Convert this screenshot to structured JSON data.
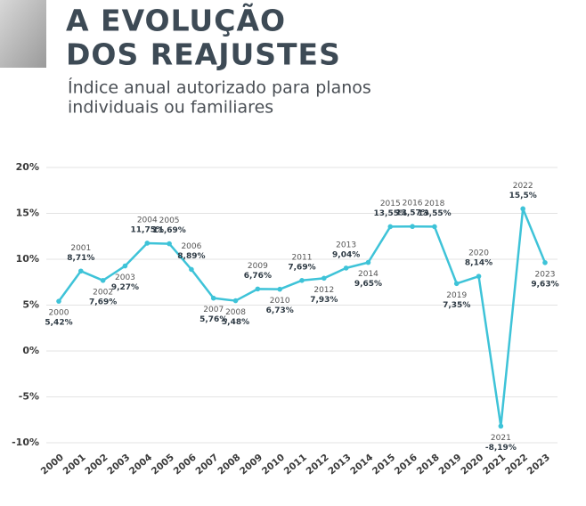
{
  "chart_data": {
    "type": "line",
    "title": [
      "A EVOLUÇÃO",
      "DOS REAJUSTES"
    ],
    "subtitle": [
      "Índice anual autorizado para planos",
      "individuais ou familiares"
    ],
    "categories": [
      "2000",
      "2001",
      "2002",
      "2003",
      "2004",
      "2005",
      "2006",
      "2007",
      "2008",
      "2009",
      "2010",
      "2011",
      "2012",
      "2013",
      "2014",
      "2015",
      "2016",
      "2018",
      "2019",
      "2020",
      "2021",
      "2022",
      "2023"
    ],
    "series": [
      {
        "name": "Reajuste",
        "color": "#3ec3d8",
        "values": [
          5.42,
          8.71,
          7.69,
          9.27,
          11.75,
          11.69,
          8.89,
          5.76,
          5.48,
          6.76,
          6.73,
          7.69,
          7.93,
          9.04,
          9.65,
          13.55,
          13.57,
          13.55,
          7.35,
          8.14,
          -8.19,
          15.5,
          9.63
        ],
        "value_labels": [
          "5,42%",
          "8,71%",
          "7,69%",
          "9,27%",
          "11,75%",
          "11,69%",
          "8,89%",
          "5,76%",
          "5,48%",
          "6,76%",
          "6,73%",
          "7,69%",
          "7,93%",
          "9,04%",
          "9,65%",
          "13,55%",
          "13,57%",
          "13,55%",
          "7,35%",
          "8,14%",
          "-8,19%",
          "15,5%",
          "9,63%"
        ]
      }
    ],
    "ylim": [
      -10,
      20
    ],
    "yticks": [
      {
        "value": -10,
        "label": "-10%"
      },
      {
        "value": -5,
        "label": "-5%"
      },
      {
        "value": 0,
        "label": "0%"
      },
      {
        "value": 5,
        "label": "5%"
      },
      {
        "value": 10,
        "label": "10%"
      },
      {
        "value": 15,
        "label": "15%"
      },
      {
        "value": 20,
        "label": "20%"
      }
    ],
    "grid": true
  }
}
